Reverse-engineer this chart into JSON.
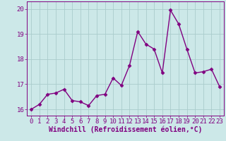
{
  "x": [
    0,
    1,
    2,
    3,
    4,
    5,
    6,
    7,
    8,
    9,
    10,
    11,
    12,
    13,
    14,
    15,
    16,
    17,
    18,
    19,
    20,
    21,
    22,
    23
  ],
  "y": [
    16.0,
    16.2,
    16.6,
    16.65,
    16.8,
    16.35,
    16.3,
    16.15,
    16.55,
    16.6,
    17.25,
    16.95,
    17.75,
    19.1,
    18.6,
    18.4,
    17.45,
    19.95,
    19.4,
    18.4,
    17.45,
    17.5,
    17.6,
    16.9
  ],
  "line_color": "#800080",
  "marker": "D",
  "marker_size": 2.5,
  "bg_color": "#cce8e8",
  "grid_color": "#aacccc",
  "xlabel": "Windchill (Refroidissement éolien,°C)",
  "ylim": [
    15.75,
    20.3
  ],
  "xlim": [
    -0.5,
    23.5
  ],
  "yticks": [
    16,
    17,
    18,
    19,
    20
  ],
  "xticks": [
    0,
    1,
    2,
    3,
    4,
    5,
    6,
    7,
    8,
    9,
    10,
    11,
    12,
    13,
    14,
    15,
    16,
    17,
    18,
    19,
    20,
    21,
    22,
    23
  ],
  "tick_label_size": 6.5,
  "xlabel_size": 7,
  "line_width": 1.0
}
